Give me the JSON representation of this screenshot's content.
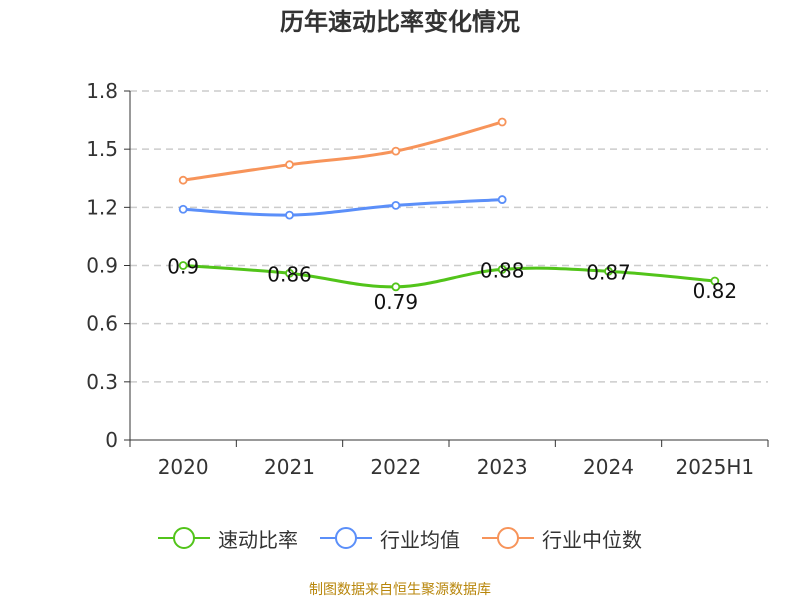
{
  "chart_data": {
    "type": "line",
    "title": "历年速动比率变化情况",
    "categories": [
      "2020",
      "2021",
      "2022",
      "2023",
      "2024",
      "2025H1"
    ],
    "ylim": [
      0,
      1.8
    ],
    "yticks": [
      "0",
      "0.3",
      "0.6",
      "0.9",
      "1.2",
      "1.5",
      "1.8"
    ],
    "grid": true,
    "legend_position": "bottom",
    "series": [
      {
        "name": "速动比率",
        "color": "#52c41a",
        "values": [
          0.9,
          0.86,
          0.79,
          0.88,
          0.87,
          0.82
        ],
        "labels": [
          "0.9",
          "0.86",
          "0.79",
          "0.88",
          "0.87",
          "0.82"
        ]
      },
      {
        "name": "行业均值",
        "color": "#5b8ff9",
        "values": [
          1.19,
          1.16,
          1.21,
          1.24,
          null,
          null
        ]
      },
      {
        "name": "行业中位数",
        "color": "#f7945a",
        "values": [
          1.34,
          1.42,
          1.49,
          1.64,
          null,
          null
        ]
      }
    ]
  },
  "source_note": "制图数据来自恒生聚源数据库"
}
